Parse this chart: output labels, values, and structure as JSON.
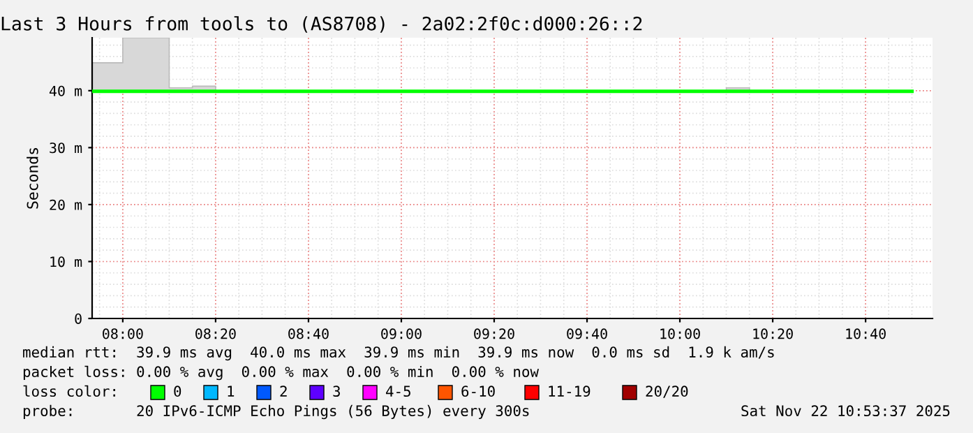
{
  "chart_data": {
    "type": "line",
    "title": "Last 3 Hours from tools to (AS8708) - 2a02:2f0c:d000:26::2",
    "ylabel": "Seconds",
    "xlim": [
      7.89,
      10.907
    ],
    "ylim": [
      0,
      49.3
    ],
    "xticks": [
      {
        "value": 8.0,
        "label": "08:00"
      },
      {
        "value": 8.3333,
        "label": "08:20"
      },
      {
        "value": 8.6667,
        "label": "08:40"
      },
      {
        "value": 9.0,
        "label": "09:00"
      },
      {
        "value": 9.3333,
        "label": "09:20"
      },
      {
        "value": 9.6667,
        "label": "09:40"
      },
      {
        "value": 10.0,
        "label": "10:00"
      },
      {
        "value": 10.3333,
        "label": "10:20"
      },
      {
        "value": 10.6667,
        "label": "10:40"
      }
    ],
    "yticks": [
      {
        "value": 0,
        "label": "0"
      },
      {
        "value": 10,
        "label": "10 m"
      },
      {
        "value": 20,
        "label": "20 m"
      },
      {
        "value": 30,
        "label": "30 m"
      },
      {
        "value": 40,
        "label": "40 m"
      }
    ],
    "grid": true,
    "legend": "bottom",
    "legend_title": "loss color:",
    "line_style": "solid",
    "marker": "none",
    "series": [
      {
        "name": "0",
        "color": "#00ff00",
        "type": "step",
        "x": [
          7.89,
          8.0,
          8.1667,
          8.25,
          8.3333,
          10.1667,
          10.25,
          10.8333
        ],
        "values": [
          39.9,
          39.9,
          39.9,
          39.9,
          39.9,
          39.9,
          39.9,
          39.9
        ],
        "lower": [
          39.9,
          39.9,
          39.9,
          39.9,
          39.9,
          39.9,
          39.9,
          39.9
        ],
        "upper": [
          44.9,
          49.3,
          40.5,
          40.8,
          39.9,
          40.5,
          39.9,
          39.9
        ]
      },
      {
        "name": "1",
        "color": "#00b8ff"
      },
      {
        "name": "2",
        "color": "#0059ff"
      },
      {
        "name": "3",
        "color": "#5e00ff"
      },
      {
        "name": "4-5",
        "color": "#ff00ff"
      },
      {
        "name": "6-10",
        "color": "#ff5500"
      },
      {
        "name": "11-19",
        "color": "#ff0000"
      },
      {
        "name": "20/20",
        "color": "#a10000"
      }
    ],
    "annotations": [
      "median rtt:  39.9 ms avg  40.0 ms max  39.9 ms min  39.9 ms now  0.0 ms sd  1.9 k am/s",
      "packet loss: 0.00 % avg  0.00 % max  0.00 % min  0.00 % now",
      "probe:       20 IPv6-ICMP Echo Pings (56 Bytes) every 300s",
      "Sat Nov 22 10:53:37 2025"
    ]
  }
}
